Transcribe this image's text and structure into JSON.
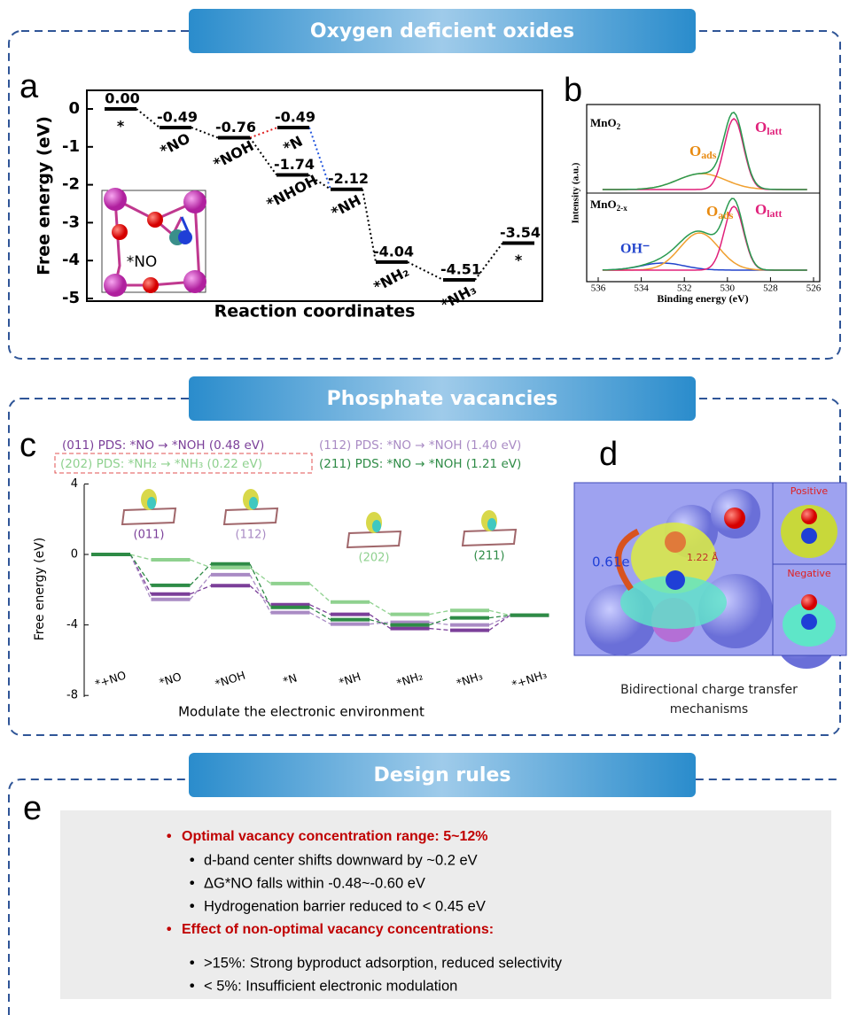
{
  "headers": [
    "Oxygen deficient oxides",
    "Phosphate vacancies",
    "Design rules"
  ],
  "panel_a": {
    "letter": "a",
    "y_label": "Free energy (eV)",
    "x_label": "Reaction coordinates",
    "yticks": [
      0,
      -1,
      -2,
      -3,
      -4,
      -5
    ],
    "inset_label": "*NO",
    "levels": [
      {
        "name": "*",
        "value": "0.00"
      },
      {
        "name": "*NO",
        "value": "-0.49"
      },
      {
        "name": "*NOH",
        "value": "-0.76"
      },
      {
        "name": "*N",
        "value": "-0.49"
      },
      {
        "name": "*NHOH",
        "value": "-1.74"
      },
      {
        "name": "*NH",
        "value": "-2.12"
      },
      {
        "name": "*NH₂",
        "value": "-4.04"
      },
      {
        "name": "*NH₃",
        "value": "-4.51"
      },
      {
        "name": "*",
        "value": "-3.54"
      }
    ]
  },
  "panel_b": {
    "letter": "b",
    "y_label": "Intensity (a.u.)",
    "x_label": "Binding energy (eV)",
    "xticks": [
      536,
      534,
      532,
      530,
      528,
      526
    ],
    "top": {
      "sample": {
        "base": "MnO",
        "sub": "2"
      },
      "ads": {
        "base": "O",
        "sub": "ads"
      },
      "latt": {
        "base": "O",
        "sub": "latt"
      }
    },
    "bottom": {
      "sample": {
        "base": "MnO",
        "sub": "2-x"
      },
      "ads": {
        "base": "O",
        "sub": "ads"
      },
      "latt": {
        "base": "O",
        "sub": "latt"
      },
      "oh": "OH⁻"
    }
  },
  "panel_c": {
    "letter": "c",
    "y_label": "Free energy (eV)",
    "x_label": "Modulate the electronic environment",
    "yticks": [
      4,
      0,
      -4,
      -8
    ],
    "legend": [
      "(011) PDS: *NO → *NOH (0.48 eV)",
      "(112) PDS: *NO → *NOH (1.40 eV)",
      "(202) PDS: *NH₂ → *NH₃ (0.22 eV)",
      "(211) PDS: *NO → *NOH (1.21 eV)"
    ],
    "categories": [
      "*+NO",
      "*NO",
      "*NOH",
      "*N",
      "*NH",
      "*NH₂",
      "*NH₃",
      "*+NH₃"
    ],
    "series": [
      {
        "name": "(011)",
        "color": "#7b3f99",
        "values": [
          0,
          -2.25,
          -1.77,
          -2.85,
          -3.4,
          -4.2,
          -4.3,
          -3.45
        ]
      },
      {
        "name": "(112)",
        "color": "#a98bc4",
        "values": [
          0,
          -2.55,
          -1.15,
          -3.3,
          -3.95,
          -3.85,
          -4.0,
          -3.45
        ]
      },
      {
        "name": "(202)",
        "color": "#8fd18f",
        "values": [
          0,
          -0.3,
          -0.75,
          -1.65,
          -2.7,
          -3.4,
          -3.18,
          -3.45
        ]
      },
      {
        "name": "(211)",
        "color": "#2e8b46",
        "values": [
          0,
          -1.75,
          -0.54,
          -3.0,
          -3.7,
          -4.0,
          -3.6,
          -3.45
        ]
      }
    ]
  },
  "panel_d": {
    "letter": "d",
    "charge": "0.61e",
    "distance": "1.22 Å",
    "positive": "Positive",
    "negative": "Negative",
    "caption": [
      "Bidirectional charge transfer",
      "mechanisms"
    ]
  },
  "panel_e": {
    "letter": "e",
    "items": [
      {
        "text": "Optimal vacancy concentration range: 5~12%",
        "sub": [
          "d-band center shifts downward by ~0.2 eV",
          "ΔG*NO falls within -0.48~-0.60 eV",
          "Hydrogenation barrier reduced to < 0.45 eV"
        ]
      },
      {
        "text": "Effect of non-optimal vacancy concentrations:",
        "sub": [
          ">15%: Strong byproduct adsorption, reduced selectivity",
          "< 5%: Insufficient electronic modulation"
        ]
      }
    ]
  }
}
